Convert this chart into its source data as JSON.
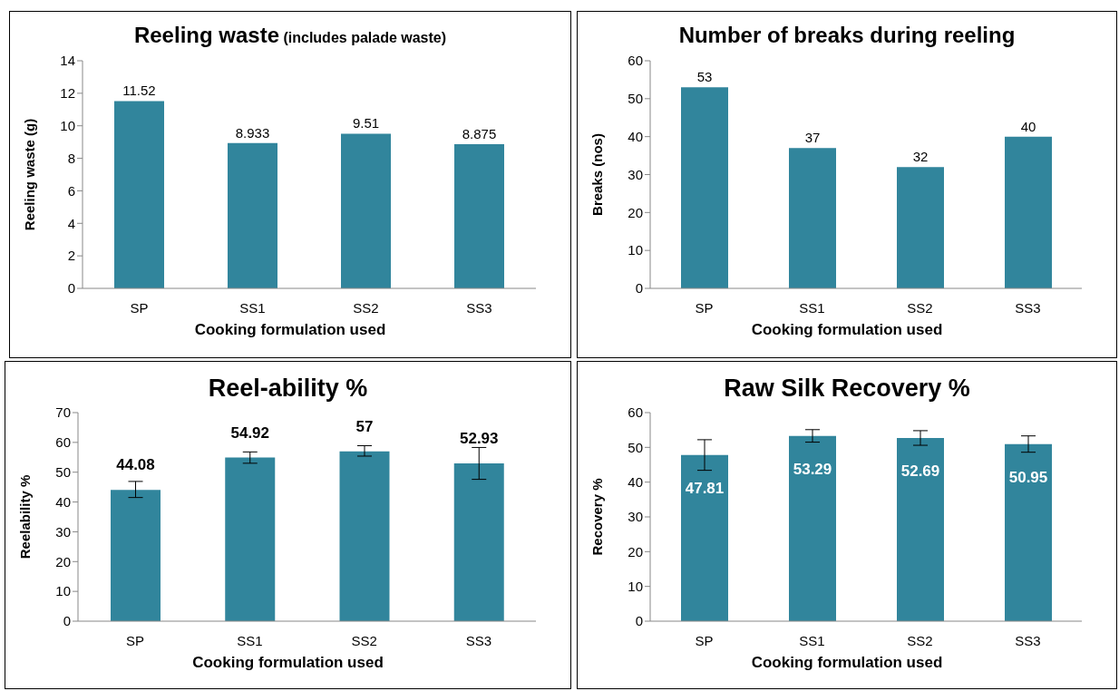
{
  "chart_data": [
    {
      "type": "bar",
      "title": "Reeling waste",
      "subtitle": "(includes palade waste)",
      "xlabel": "Cooking formulation used",
      "ylabel": "Reeling waste (g)",
      "categories": [
        "SP",
        "SS1",
        "SS2",
        "SS3"
      ],
      "values": [
        11.52,
        8.933,
        9.51,
        8.875
      ],
      "color": "#31859c",
      "ylim": [
        0,
        14
      ],
      "yticks": [
        0,
        2,
        4,
        6,
        8,
        10,
        12,
        14
      ],
      "data_labels": true
    },
    {
      "type": "bar",
      "title": "Number of breaks during reeling",
      "xlabel": "Cooking formulation used",
      "ylabel": "Breaks (nos)",
      "categories": [
        "SP",
        "SS1",
        "SS2",
        "SS3"
      ],
      "values": [
        53,
        37,
        32,
        40
      ],
      "color": "#31859c",
      "ylim": [
        0,
        60
      ],
      "yticks": [
        0,
        10,
        20,
        30,
        40,
        50,
        60
      ],
      "data_labels": true
    },
    {
      "type": "bar",
      "title": "Reel-ability %",
      "xlabel": "Cooking formulation used",
      "ylabel": "Reelability %",
      "categories": [
        "SP",
        "SS1",
        "SS2",
        "SS3"
      ],
      "values": [
        44.08,
        54.92,
        57,
        52.93
      ],
      "errors": [
        [
          41.5,
          46.9
        ],
        [
          53.0,
          56.8
        ],
        [
          55.4,
          58.9
        ],
        [
          47.6,
          58.3
        ]
      ],
      "color": "#31859c",
      "ylim": [
        0,
        70
      ],
      "yticks": [
        0,
        10,
        20,
        30,
        40,
        50,
        60,
        70
      ],
      "data_labels": true
    },
    {
      "type": "bar",
      "title": "Raw Silk Recovery %",
      "xlabel": "Cooking formulation used",
      "ylabel": "Recovery %",
      "categories": [
        "SP",
        "SS1",
        "SS2",
        "SS3"
      ],
      "values": [
        47.81,
        53.29,
        52.69,
        50.95
      ],
      "errors": [
        [
          43.4,
          52.2
        ],
        [
          51.5,
          55.1
        ],
        [
          50.6,
          54.8
        ],
        [
          48.6,
          53.3
        ]
      ],
      "color": "#31859c",
      "ylim": [
        0,
        60
      ],
      "yticks": [
        0,
        10,
        20,
        30,
        40,
        50,
        60
      ],
      "data_labels": true
    }
  ]
}
